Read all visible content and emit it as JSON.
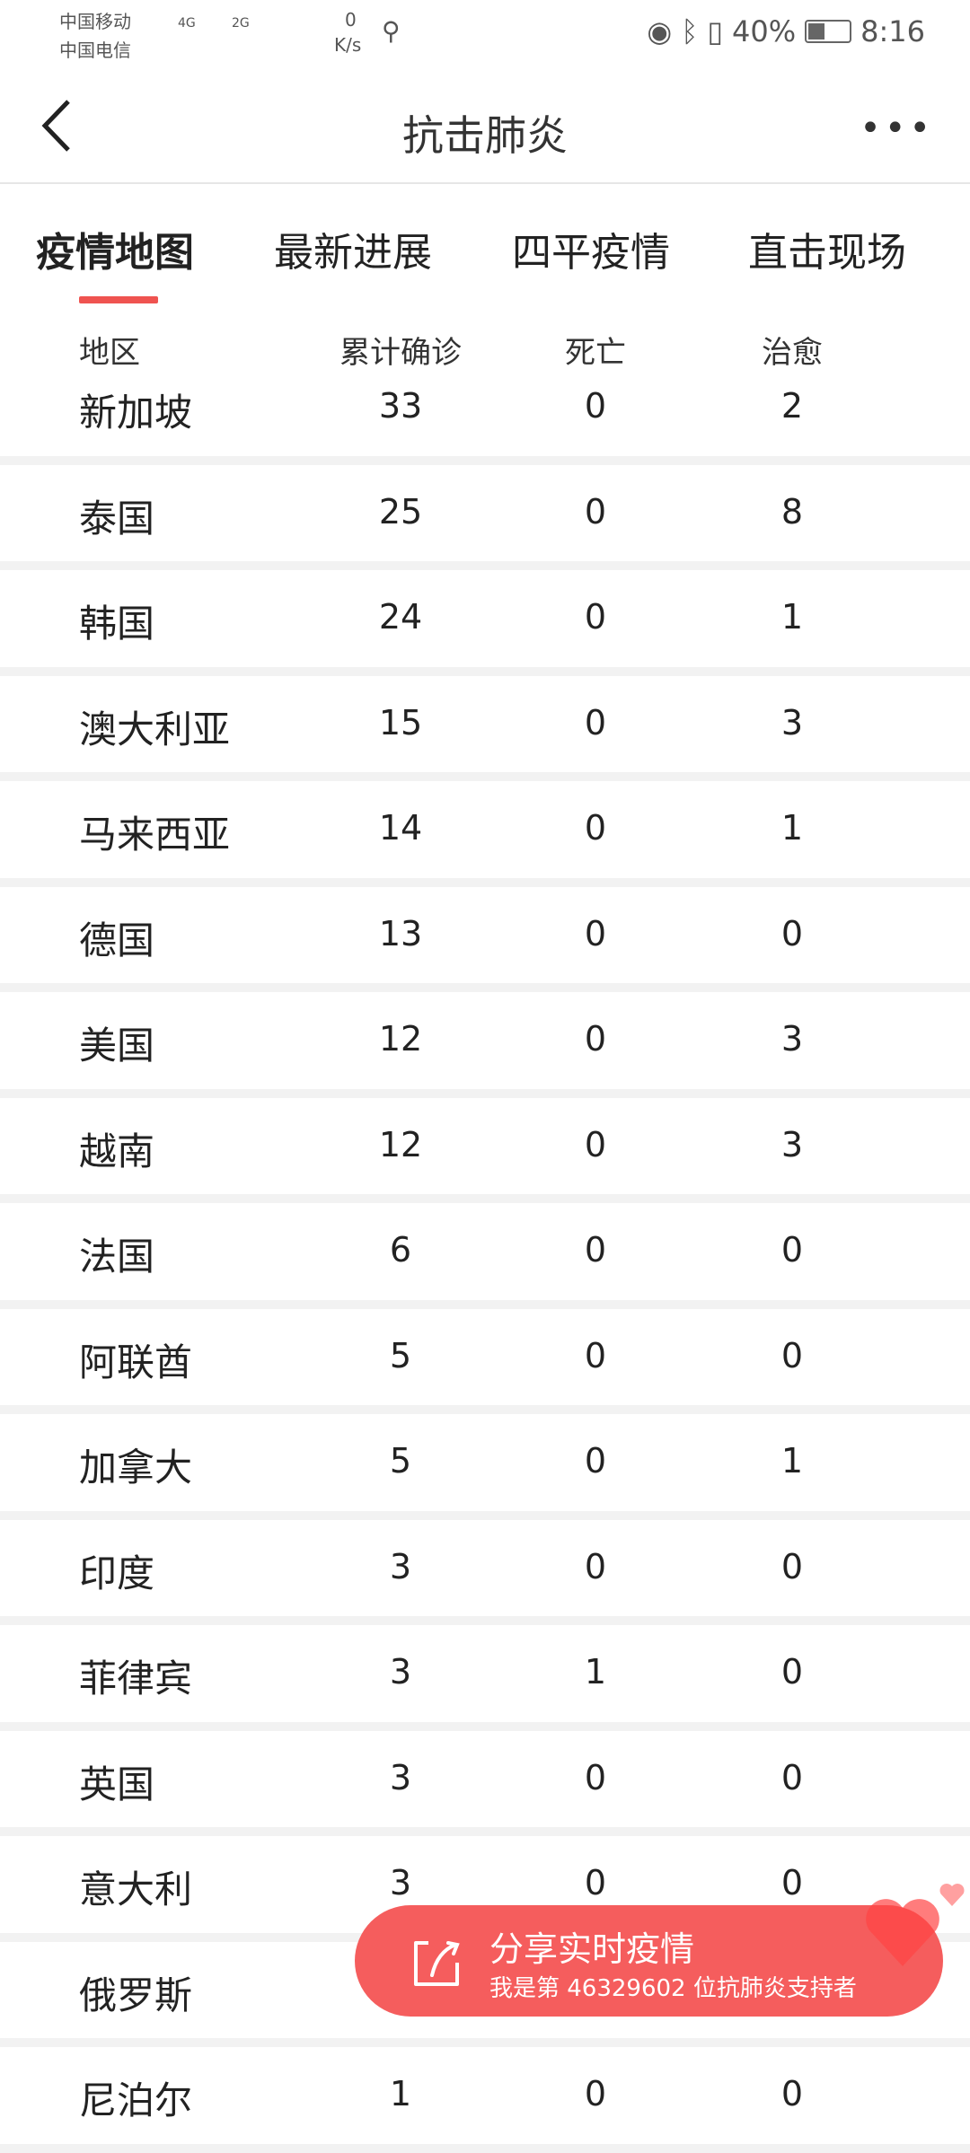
{
  "status": {
    "carrier1": "中国移动",
    "carrier2": "中国电信",
    "net1": "4G",
    "net2": "2G",
    "speed": "0",
    "speed_unit": "K/s",
    "battery": "40%",
    "time": "8:16"
  },
  "header": {
    "title": "抗击肺炎"
  },
  "tabs": [
    {
      "label": "疫情地图",
      "active": true
    },
    {
      "label": "最新进展"
    },
    {
      "label": "四平疫情"
    },
    {
      "label": "直击现场"
    }
  ],
  "table": {
    "columns": [
      "地区",
      "累计确诊",
      "死亡",
      "治愈"
    ],
    "rows": [
      [
        "新加坡",
        "33",
        "0",
        "2"
      ],
      [
        "泰国",
        "25",
        "0",
        "8"
      ],
      [
        "韩国",
        "24",
        "0",
        "1"
      ],
      [
        "澳大利亚",
        "15",
        "0",
        "3"
      ],
      [
        "马来西亚",
        "14",
        "0",
        "1"
      ],
      [
        "德国",
        "13",
        "0",
        "0"
      ],
      [
        "美国",
        "12",
        "0",
        "3"
      ],
      [
        "越南",
        "12",
        "0",
        "3"
      ],
      [
        "法国",
        "6",
        "0",
        "0"
      ],
      [
        "阿联酋",
        "5",
        "0",
        "0"
      ],
      [
        "加拿大",
        "5",
        "0",
        "1"
      ],
      [
        "印度",
        "3",
        "0",
        "0"
      ],
      [
        "菲律宾",
        "3",
        "1",
        "0"
      ],
      [
        "英国",
        "3",
        "0",
        "0"
      ],
      [
        "意大利",
        "3",
        "0",
        "0"
      ],
      [
        "俄罗斯",
        "",
        "",
        ""
      ],
      [
        "尼泊尔",
        "1",
        "0",
        "0"
      ]
    ]
  },
  "share": {
    "title": "分享实时疫情",
    "subtitle": "我是第 46329602 位抗肺炎支持者",
    "color": "#f55d5d"
  }
}
